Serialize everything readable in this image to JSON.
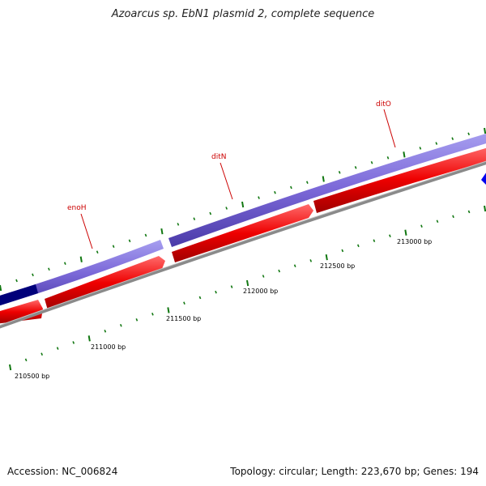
{
  "title": "Azoarcus sp. EbN1 plasmid 2, complete sequence",
  "footer": {
    "accession": "Accession: NC_006824",
    "summary": "Topology: circular; Length: 223,670 bp; Genes: 194"
  },
  "colors": {
    "forward_track": "#7b68d8",
    "forward_dark": "#00007a",
    "reverse_track": "#ee0000",
    "backbone": "#8a8a8a",
    "tick": "#117711",
    "gene_label": "#cc0000",
    "blue_arrow": "#0000ee"
  },
  "genes": [
    {
      "name": "enoH"
    },
    {
      "name": "ditN"
    },
    {
      "name": "ditO"
    }
  ],
  "scale": {
    "labels": [
      "210500 bp",
      "211000 bp",
      "211500 bp",
      "212000 bp",
      "212500 bp",
      "213000 bp"
    ]
  }
}
